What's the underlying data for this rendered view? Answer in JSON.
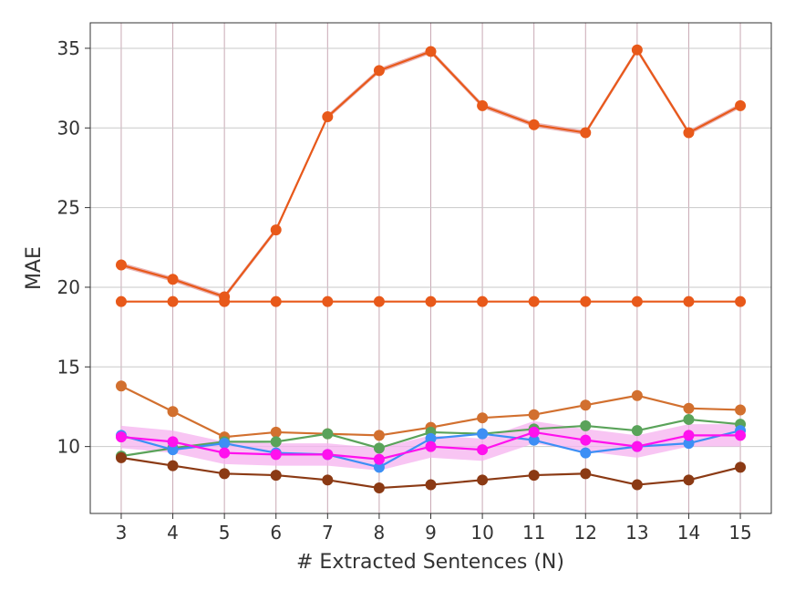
{
  "chart_data": {
    "type": "line",
    "title": "",
    "xlabel": "# Extracted Sentences (N)",
    "ylabel": "MAE",
    "x": [
      3,
      4,
      5,
      6,
      7,
      8,
      9,
      10,
      11,
      12,
      13,
      14,
      15
    ],
    "xlim": [
      2.4,
      15.6
    ],
    "ylim": [
      5.8,
      36.6
    ],
    "xticks": [
      3,
      4,
      5,
      6,
      7,
      8,
      9,
      10,
      11,
      12,
      13,
      14,
      15
    ],
    "yticks": [
      10,
      15,
      20,
      25,
      30,
      35
    ],
    "grid": true,
    "series": [
      {
        "values": [
          21.4,
          20.5,
          19.4,
          23.6,
          30.7,
          33.6,
          34.8,
          31.4,
          30.2,
          29.7,
          34.9,
          29.7,
          31.4
        ],
        "color": "#e8591a",
        "band": 0.15,
        "band_color": "#e39a9a"
      },
      {
        "values": [
          19.1,
          19.1,
          19.1,
          19.1,
          19.1,
          19.1,
          19.1,
          19.1,
          19.1,
          19.1,
          19.1,
          19.1,
          19.1
        ],
        "color": "#e8591a"
      },
      {
        "values": [
          13.8,
          12.2,
          10.6,
          10.9,
          10.8,
          10.7,
          11.2,
          11.8,
          12.0,
          12.6,
          13.2,
          12.4,
          12.3
        ],
        "color": "#d2702f"
      },
      {
        "values": [
          9.4,
          9.9,
          10.3,
          10.3,
          10.8,
          9.9,
          10.9,
          10.8,
          11.1,
          11.3,
          11.0,
          11.7,
          11.4
        ],
        "color": "#5aa35a"
      },
      {
        "values": [
          10.7,
          9.8,
          10.2,
          9.6,
          9.5,
          8.7,
          10.5,
          10.8,
          10.4,
          9.6,
          10.0,
          10.2,
          11.0
        ],
        "color": "#3d8ff5"
      },
      {
        "values": [
          10.6,
          10.3,
          9.6,
          9.5,
          9.5,
          9.2,
          10.0,
          9.8,
          10.9,
          10.4,
          10.0,
          10.7,
          10.7
        ],
        "color": "#ff11ee",
        "band": 0.7,
        "band_color": "#f5b2ef"
      },
      {
        "values": [
          9.3,
          8.8,
          8.3,
          8.2,
          7.9,
          7.4,
          7.6,
          7.9,
          8.2,
          8.3,
          7.6,
          7.9,
          8.7
        ],
        "color": "#8b3a14"
      }
    ]
  }
}
